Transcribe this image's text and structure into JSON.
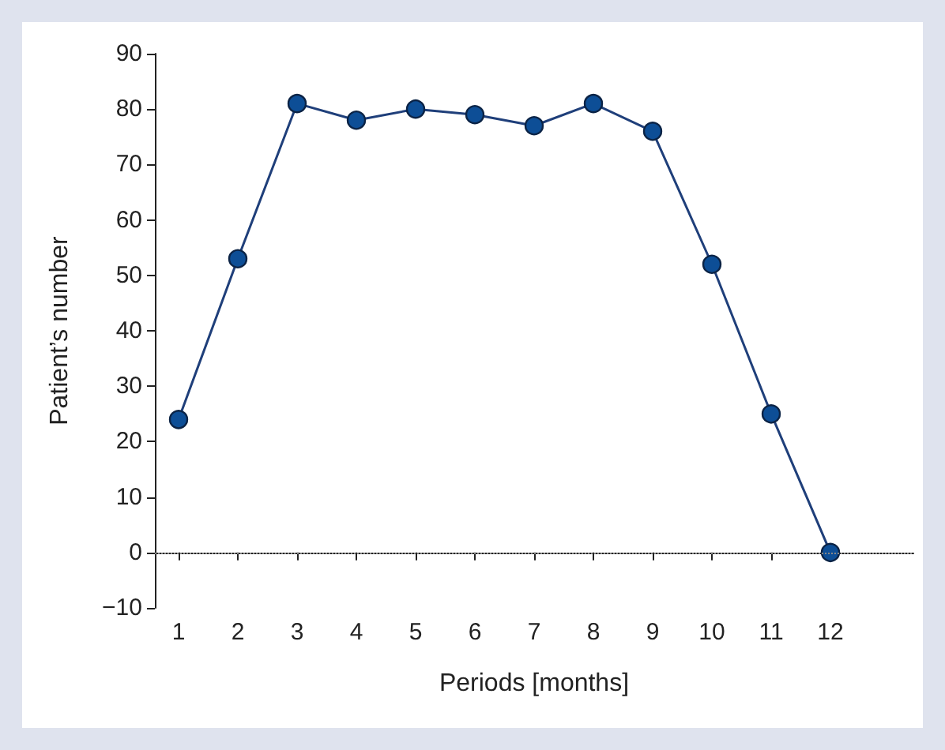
{
  "chart_data": {
    "type": "line",
    "xlabel": "Periods [months]",
    "ylabel": "Patient’s number",
    "x": [
      1,
      2,
      3,
      4,
      5,
      6,
      7,
      8,
      9,
      10,
      11,
      12
    ],
    "series": [
      {
        "color": "#1f3f7a",
        "values": [
          24,
          53,
          81,
          78,
          80,
          79,
          77,
          81,
          76,
          52,
          25,
          0
        ]
      }
    ],
    "xlim": [
      0.6,
      13.4
    ],
    "xticks": [
      1,
      2,
      3,
      4,
      5,
      6,
      7,
      8,
      9,
      10,
      11,
      12
    ],
    "ylim": [
      -10,
      90
    ],
    "yticks": [
      -10,
      0,
      10,
      20,
      30,
      40,
      50,
      60,
      70,
      80,
      90
    ],
    "ref_lines": [
      {
        "axis": "y",
        "value": 0,
        "color": "#888888",
        "line_style": "dotted"
      }
    ],
    "marker": "circle",
    "line_style": "solid"
  }
}
